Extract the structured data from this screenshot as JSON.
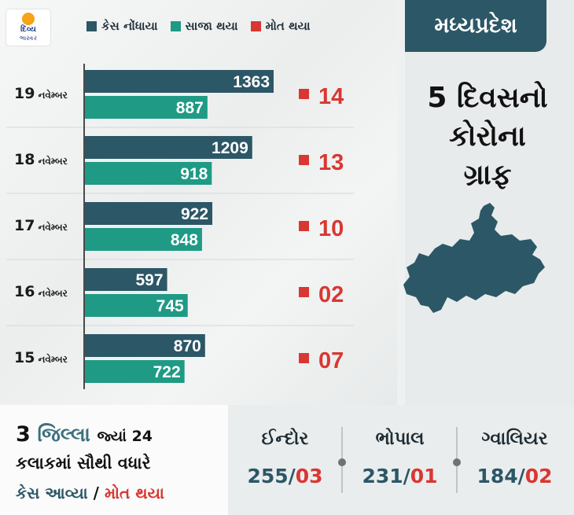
{
  "branding": {
    "logo_line1": "દિવ્ય",
    "logo_line2": "ભાસ્કર"
  },
  "legend": [
    {
      "label": "કેસ નોંધાયા",
      "color": "#2c5766"
    },
    {
      "label": "સાજા થયા",
      "color": "#1f9a85"
    },
    {
      "label": "મોત થયા",
      "color": "#d93732"
    }
  ],
  "state": "મધ્યપ્રદેશ",
  "title_lines": [
    "5 દિવસનો",
    "કોરોના",
    "ગ્રાફ"
  ],
  "colors": {
    "cases": "#2c5766",
    "recovered": "#1f9a85",
    "deaths": "#d93732",
    "marker": "#d93732"
  },
  "chart_data": {
    "type": "bar",
    "orientation": "horizontal",
    "categories": [
      "19 નવેમ્બર",
      "18 નવેમ્બર",
      "17 નવેમ્બર",
      "16 નવેમ્બર",
      "15 નવેમ્બર"
    ],
    "series": [
      {
        "name": "કેસ નોંધાયા",
        "values": [
          1363,
          1209,
          922,
          597,
          870
        ]
      },
      {
        "name": "સાજા થયા",
        "values": [
          887,
          918,
          848,
          745,
          722
        ]
      },
      {
        "name": "મોત થયા",
        "values": [
          "14",
          "13",
          "10",
          "02",
          "07"
        ]
      }
    ],
    "title": "",
    "xlabel": "",
    "ylabel": "",
    "xlim": [
      0,
      1363
    ],
    "grid": false,
    "legend": "top"
  },
  "bottom": {
    "headline_num": "3",
    "headline_word": "જિલ્લા",
    "headline_rest": "જ્યાં 24",
    "line2": "કલાકમાં સૌથી વધારે",
    "label_cases": "કેસ આવ્યા",
    "label_sep": "/",
    "label_deaths": "મોત થયા",
    "cities": [
      {
        "name": "ઈન્દોર",
        "cases": "255",
        "deaths": "03"
      },
      {
        "name": "ભોપાલ",
        "cases": "231",
        "deaths": "01"
      },
      {
        "name": "ગ્વાલિયર",
        "cases": "184",
        "deaths": "02"
      }
    ],
    "slash": "/"
  }
}
